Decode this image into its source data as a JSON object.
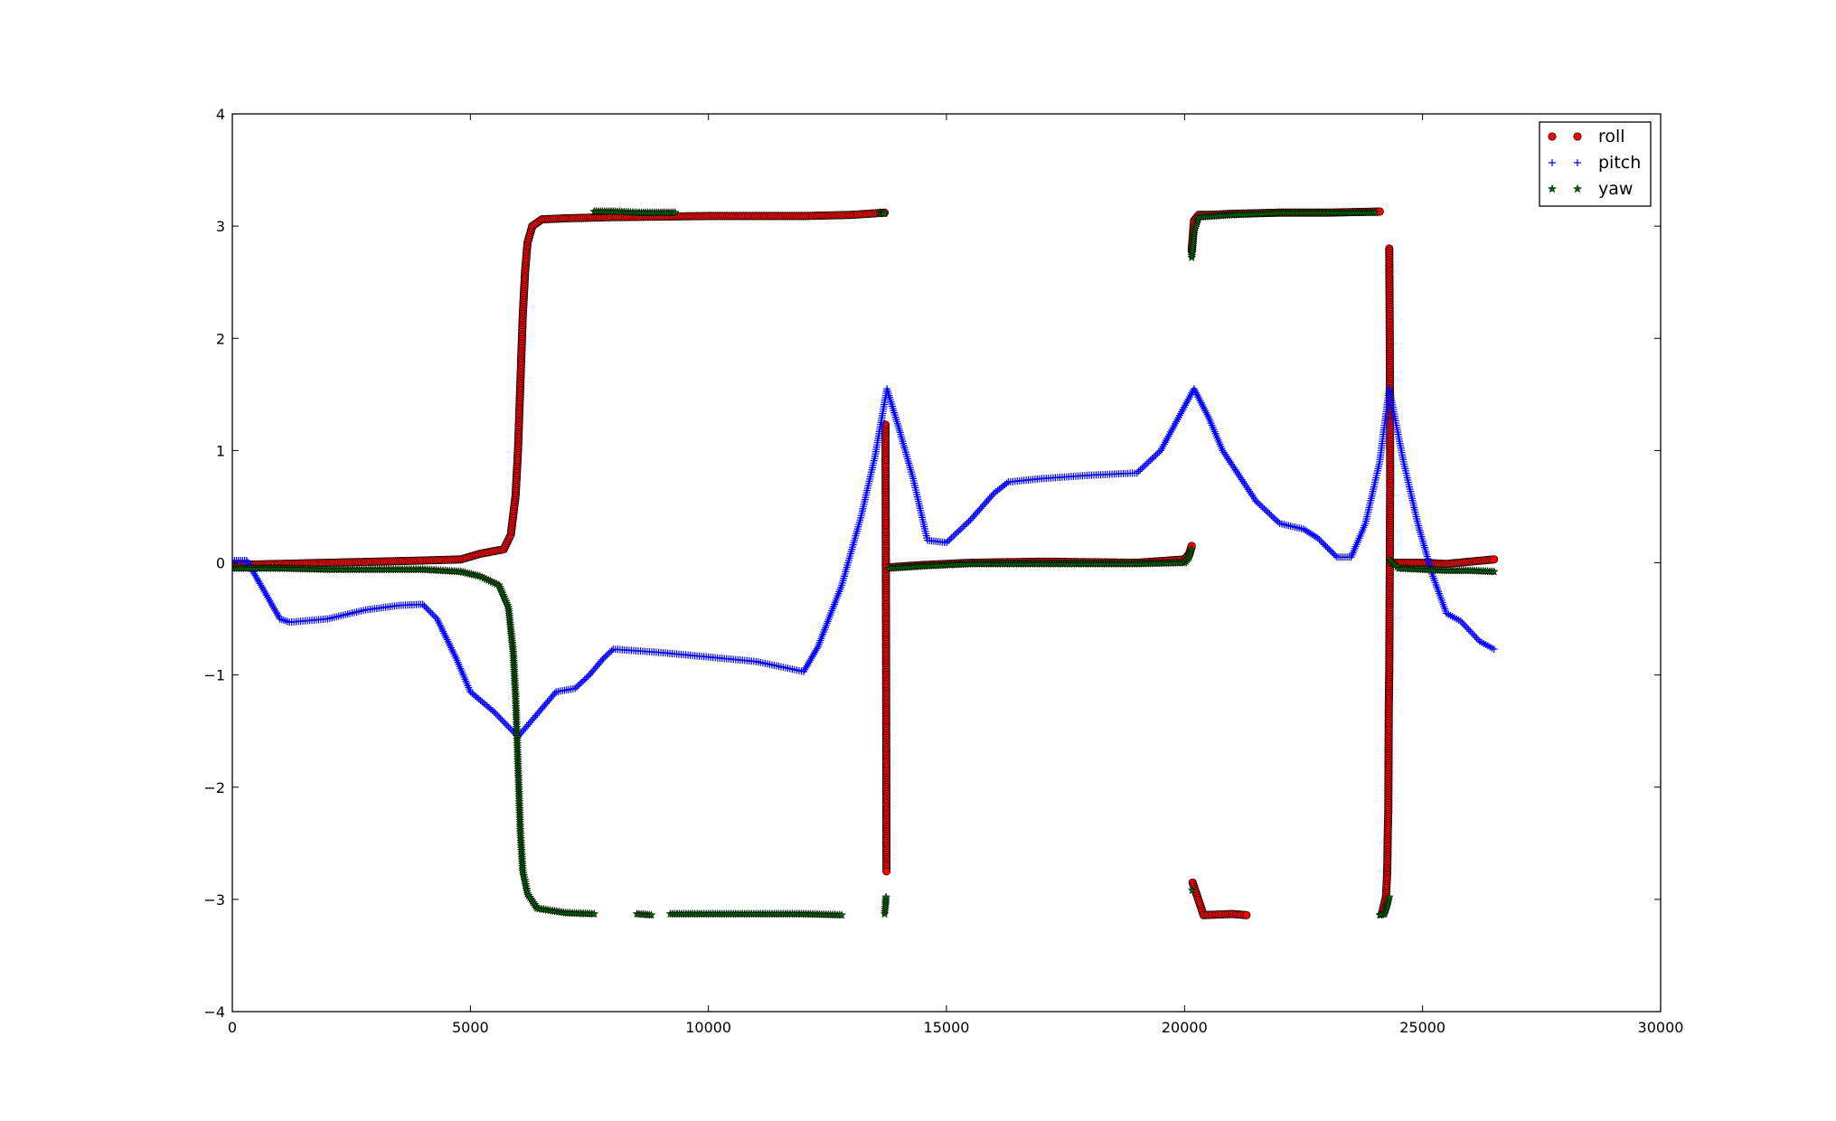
{
  "chart_data": {
    "type": "scatter",
    "title": "",
    "xlabel": "",
    "ylabel": "",
    "xlim": [
      0,
      30000
    ],
    "ylim": [
      -4,
      4
    ],
    "x_ticks": [
      0,
      5000,
      10000,
      15000,
      20000,
      25000,
      30000
    ],
    "y_ticks": [
      -4,
      -3,
      -2,
      -1,
      0,
      1,
      2,
      3,
      4
    ],
    "grid": false,
    "legend": {
      "position": "top-right",
      "entries": [
        "roll",
        "pitch",
        "yaw"
      ]
    },
    "series": [
      {
        "name": "roll",
        "marker": "circle",
        "color": "#ff0000",
        "edge_color": "#000000",
        "segments": [
          [
            [
              0,
              -0.02
            ],
            [
              1000,
              -0.01
            ],
            [
              2000,
              0.0
            ],
            [
              3000,
              0.01
            ],
            [
              4000,
              0.02
            ],
            [
              4800,
              0.03
            ],
            [
              5200,
              0.08
            ],
            [
              5700,
              0.12
            ],
            [
              5850,
              0.25
            ],
            [
              5950,
              0.6
            ],
            [
              6000,
              1.0
            ],
            [
              6050,
              1.6
            ],
            [
              6100,
              2.2
            ],
            [
              6150,
              2.6
            ],
            [
              6200,
              2.85
            ],
            [
              6300,
              3.0
            ],
            [
              6500,
              3.06
            ],
            [
              7000,
              3.07
            ],
            [
              8000,
              3.08
            ],
            [
              10000,
              3.09
            ],
            [
              12000,
              3.09
            ],
            [
              13000,
              3.1
            ],
            [
              13700,
              3.12
            ]
          ],
          [
            [
              13720,
              1.23
            ],
            [
              13730,
              -0.6
            ],
            [
              13740,
              -2.75
            ]
          ],
          [
            [
              13800,
              -0.04
            ],
            [
              14500,
              -0.02
            ],
            [
              15500,
              0.0
            ],
            [
              17000,
              0.01
            ],
            [
              19000,
              0.0
            ],
            [
              20000,
              0.03
            ],
            [
              20100,
              0.08
            ],
            [
              20150,
              0.15
            ]
          ],
          [
            [
              20150,
              2.78
            ],
            [
              20200,
              3.05
            ],
            [
              20300,
              3.1
            ],
            [
              20500,
              3.1
            ],
            [
              21000,
              3.11
            ],
            [
              22000,
              3.12
            ],
            [
              23000,
              3.12
            ],
            [
              24100,
              3.13
            ]
          ],
          [
            [
              20170,
              -2.85
            ],
            [
              20400,
              -3.14
            ],
            [
              21000,
              -3.13
            ],
            [
              21300,
              -3.14
            ]
          ],
          [
            [
              24300,
              2.8
            ],
            [
              24310,
              2.05
            ],
            [
              24320,
              0.77
            ],
            [
              24300,
              -0.98
            ],
            [
              24290,
              -1.28
            ],
            [
              24280,
              -2.22
            ],
            [
              24270,
              -2.38
            ],
            [
              24260,
              -2.7
            ],
            [
              24250,
              -2.82
            ],
            [
              24240,
              -2.9
            ],
            [
              24230,
              -2.98
            ],
            [
              24150,
              -3.12
            ]
          ],
          [
            [
              24350,
              0.0
            ],
            [
              25000,
              0.0
            ],
            [
              25500,
              -0.01
            ],
            [
              26000,
              0.01
            ],
            [
              26500,
              0.03
            ]
          ]
        ]
      },
      {
        "name": "pitch",
        "marker": "plus",
        "color": "#0000ff",
        "segments": [
          [
            [
              0,
              0.02
            ],
            [
              300,
              0.02
            ],
            [
              600,
              -0.2
            ],
            [
              1000,
              -0.5
            ],
            [
              1200,
              -0.53
            ],
            [
              2000,
              -0.5
            ],
            [
              2800,
              -0.42
            ],
            [
              3500,
              -0.38
            ],
            [
              4000,
              -0.37
            ],
            [
              4300,
              -0.5
            ],
            [
              4700,
              -0.85
            ],
            [
              5000,
              -1.15
            ],
            [
              5500,
              -1.33
            ],
            [
              6000,
              -1.55
            ],
            [
              6500,
              -1.3
            ],
            [
              6800,
              -1.15
            ],
            [
              7200,
              -1.12
            ],
            [
              7500,
              -1.0
            ],
            [
              7800,
              -0.85
            ],
            [
              8000,
              -0.77
            ],
            [
              9000,
              -0.8
            ],
            [
              10000,
              -0.84
            ],
            [
              11000,
              -0.88
            ],
            [
              12000,
              -0.97
            ],
            [
              12300,
              -0.75
            ],
            [
              12800,
              -0.2
            ],
            [
              13200,
              0.4
            ],
            [
              13500,
              0.95
            ],
            [
              13750,
              1.55
            ],
            [
              14000,
              1.2
            ],
            [
              14300,
              0.75
            ],
            [
              14600,
              0.2
            ],
            [
              15000,
              0.18
            ],
            [
              15500,
              0.38
            ],
            [
              16000,
              0.62
            ],
            [
              16300,
              0.72
            ],
            [
              17000,
              0.75
            ],
            [
              18000,
              0.78
            ],
            [
              19000,
              0.8
            ],
            [
              19500,
              1.0
            ],
            [
              20200,
              1.55
            ],
            [
              20500,
              1.3
            ],
            [
              20800,
              1.0
            ],
            [
              21500,
              0.55
            ],
            [
              22000,
              0.35
            ],
            [
              22500,
              0.3
            ],
            [
              22800,
              0.22
            ],
            [
              23200,
              0.05
            ],
            [
              23500,
              0.05
            ],
            [
              23800,
              0.35
            ],
            [
              24100,
              0.9
            ],
            [
              24300,
              1.55
            ],
            [
              24600,
              0.9
            ],
            [
              24900,
              0.35
            ],
            [
              25200,
              -0.1
            ],
            [
              25500,
              -0.45
            ],
            [
              25800,
              -0.52
            ],
            [
              26200,
              -0.7
            ],
            [
              26500,
              -0.77
            ]
          ]
        ]
      },
      {
        "name": "yaw",
        "marker": "star",
        "color": "#006400",
        "edge_color": "#000000",
        "segments": [
          [
            [
              0,
              -0.05
            ],
            [
              1000,
              -0.05
            ],
            [
              2000,
              -0.06
            ],
            [
              3000,
              -0.06
            ],
            [
              4000,
              -0.06
            ],
            [
              4800,
              -0.08
            ],
            [
              5200,
              -0.12
            ],
            [
              5600,
              -0.2
            ],
            [
              5800,
              -0.4
            ],
            [
              5900,
              -0.8
            ],
            [
              5950,
              -1.2
            ],
            [
              6000,
              -1.8
            ],
            [
              6050,
              -2.4
            ],
            [
              6100,
              -2.75
            ],
            [
              6200,
              -2.95
            ],
            [
              6400,
              -3.08
            ],
            [
              7000,
              -3.12
            ],
            [
              7600,
              -3.13
            ]
          ],
          [
            [
              8500,
              -3.13
            ],
            [
              8800,
              -3.14
            ]
          ],
          [
            [
              9200,
              -3.13
            ],
            [
              10000,
              -3.13
            ],
            [
              11000,
              -3.13
            ],
            [
              12000,
              -3.13
            ],
            [
              12800,
              -3.14
            ]
          ],
          [
            [
              7600,
              3.13
            ],
            [
              8000,
              3.13
            ],
            [
              8500,
              3.12
            ],
            [
              9000,
              3.12
            ],
            [
              9300,
              3.12
            ]
          ],
          [
            [
              13600,
              3.12
            ],
            [
              13700,
              3.11
            ]
          ],
          [
            [
              13700,
              -3.13
            ],
            [
              13720,
              -3.05
            ],
            [
              13730,
              -2.98
            ]
          ],
          [
            [
              13800,
              -0.05
            ],
            [
              14500,
              -0.03
            ],
            [
              15500,
              -0.01
            ],
            [
              17000,
              -0.01
            ],
            [
              19000,
              -0.01
            ],
            [
              20000,
              0.0
            ],
            [
              20100,
              0.05
            ],
            [
              20150,
              0.12
            ]
          ],
          [
            [
              20150,
              2.72
            ],
            [
              20200,
              2.95
            ],
            [
              20300,
              3.08
            ],
            [
              21000,
              3.1
            ],
            [
              22000,
              3.12
            ],
            [
              23000,
              3.12
            ],
            [
              24000,
              3.12
            ]
          ],
          [
            [
              20160,
              -2.92
            ]
          ],
          [
            [
              24100,
              -3.14
            ],
            [
              24200,
              -3.13
            ],
            [
              24260,
              -3.05
            ],
            [
              24300,
              -2.98
            ]
          ],
          [
            [
              24320,
              0.02
            ],
            [
              24500,
              -0.05
            ],
            [
              25000,
              -0.06
            ],
            [
              25500,
              -0.07
            ],
            [
              26000,
              -0.07
            ],
            [
              26500,
              -0.08
            ]
          ]
        ]
      }
    ]
  }
}
